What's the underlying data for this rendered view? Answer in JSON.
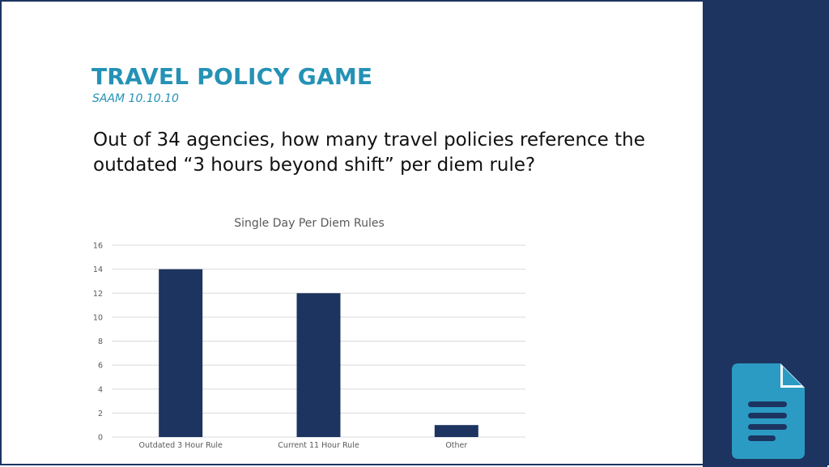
{
  "slide": {
    "title": "TRAVEL POLICY GAME",
    "subtitle": "SAAM 10.10.10",
    "question": "Out of 34 agencies, how many travel policies reference the outdated “3 hours beyond shift” per diem rule?"
  },
  "colors": {
    "accent": "#2592b5",
    "panel": "#1d3461",
    "bar": "#1d3461",
    "icon": "#2b9bc4"
  },
  "icons": {
    "document": "document-icon"
  },
  "chart_data": {
    "type": "bar",
    "title": "Single Day Per Diem Rules",
    "categories": [
      "Outdated 3 Hour Rule",
      "Current 11 Hour Rule",
      "Other"
    ],
    "values": [
      14,
      12,
      1
    ],
    "ylim": [
      0,
      16
    ],
    "yticks": [
      0,
      2,
      4,
      6,
      8,
      10,
      12,
      14,
      16
    ],
    "xlabel": "",
    "ylabel": "",
    "grid": true,
    "legend": "none"
  }
}
